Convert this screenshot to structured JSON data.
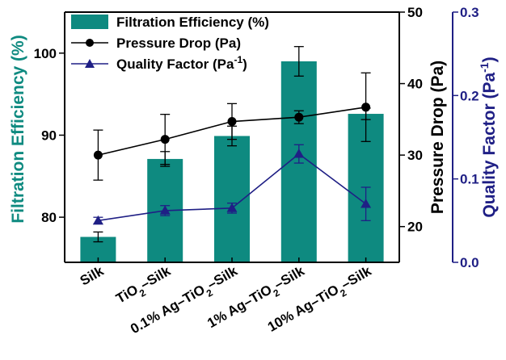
{
  "chart_data": {
    "type": "bar",
    "categories": [
      "Silk",
      "TiO2-Silk",
      "0.1% Ag-TiO2-Silk",
      "1% Ag-TiO2-Silk",
      "10% Ag-TiO2-Silk"
    ],
    "category_parts": [
      [
        {
          "t": "Silk"
        }
      ],
      [
        {
          "t": "TiO"
        },
        {
          "t": "2",
          "sub": true
        },
        {
          "t": "–Silk"
        }
      ],
      [
        {
          "t": "0.1% Ag–TiO"
        },
        {
          "t": "2",
          "sub": true
        },
        {
          "t": "–Silk"
        }
      ],
      [
        {
          "t": "1% Ag–TiO"
        },
        {
          "t": "2",
          "sub": true
        },
        {
          "t": "–Silk"
        }
      ],
      [
        {
          "t": "10% Ag–TiO"
        },
        {
          "t": "2",
          "sub": true
        },
        {
          "t": "–Silk"
        }
      ]
    ],
    "series": [
      {
        "name": "Filtration Efficiency (%)",
        "type": "bar",
        "axis": "left",
        "values": [
          77.6,
          87.1,
          89.9,
          99.0,
          92.6
        ],
        "errors": [
          0.6,
          0.9,
          1.2,
          1.8,
          0.7
        ],
        "color": "#0e8a80"
      },
      {
        "name": "Pressure Drop (Pa)",
        "type": "line",
        "axis": "right1",
        "marker": "circle",
        "values": [
          30.0,
          32.2,
          34.7,
          35.3,
          36.7
        ],
        "errors": [
          3.5,
          3.5,
          2.5,
          0.9,
          4.8
        ],
        "color": "#000000"
      },
      {
        "name": "Quality Factor (Pa-1)",
        "type": "line",
        "axis": "right2",
        "marker": "triangle",
        "values": [
          0.05,
          0.062,
          0.065,
          0.13,
          0.07
        ],
        "errors": [
          0.004,
          0.006,
          0.006,
          0.011,
          0.02
        ],
        "color": "#1f1f85"
      }
    ],
    "axes": {
      "left": {
        "label": "Filtration Efficiency (%)",
        "min": 74.5,
        "max": 105,
        "ticks": [
          80,
          90,
          100
        ],
        "color": "#0e8a80"
      },
      "right1": {
        "label": "Pressure Drop (Pa)",
        "min": 15,
        "max": 50,
        "ticks": [
          20,
          30,
          40,
          50
        ],
        "color": "#000000"
      },
      "right2": {
        "label": "Quality Factor (Pa-1)",
        "min": 0.0,
        "max": 0.3,
        "ticks": [
          0.0,
          0.1,
          0.2,
          0.3
        ],
        "color": "#1f1f85"
      }
    },
    "legend": {
      "position": "top-left",
      "entries": [
        {
          "parts": [
            {
              "t": "Filtration Efficiency (%)"
            }
          ],
          "kind": "bar"
        },
        {
          "parts": [
            {
              "t": "Pressure Drop (Pa)"
            }
          ],
          "kind": "circle-line"
        },
        {
          "parts": [
            {
              "t": "Quality Factor (Pa"
            },
            {
              "t": "-1",
              "sup": true
            },
            {
              "t": ")"
            }
          ],
          "kind": "triangle-line"
        }
      ]
    }
  }
}
